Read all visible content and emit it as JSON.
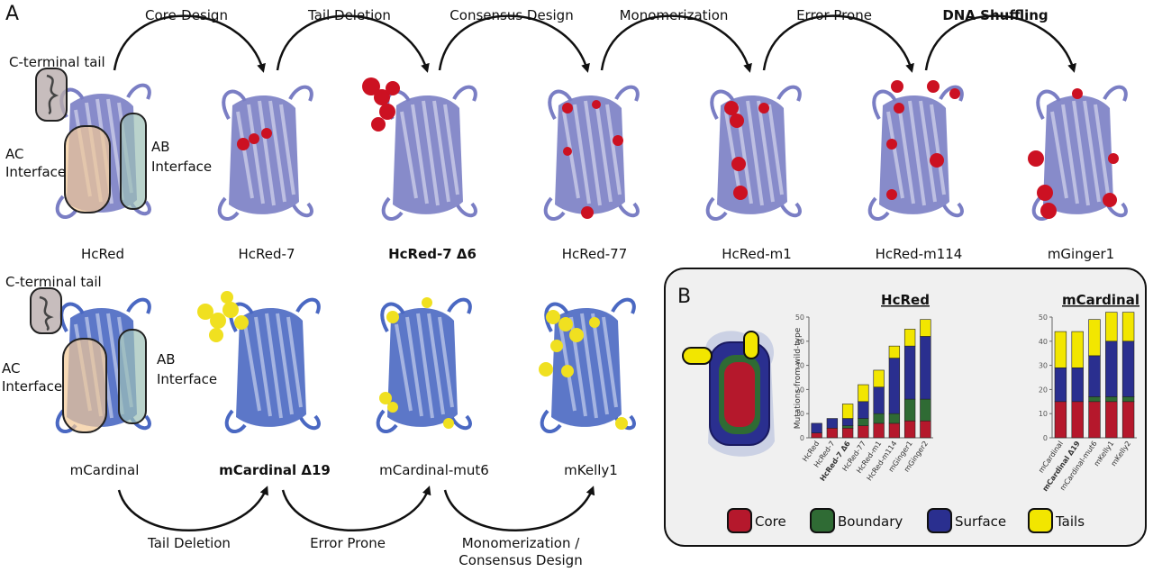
{
  "figure": {
    "panel_a": "A",
    "panel_b": "B",
    "top_steps": [
      "Core-Design",
      "Tail Deletion",
      "Consensus Design",
      "Monomerization",
      "Error Prone",
      "DNA Shuffling"
    ],
    "top_proteins": [
      "HcRed",
      "HcRed-7",
      "HcRed-7 Δ6",
      "HcRed-77",
      "HcRed-m1",
      "HcRed-m114",
      "mGinger1"
    ],
    "bottom_steps": [
      "Tail Deletion",
      "Error Prone",
      "Monomerization /",
      "Consensus Design"
    ],
    "bottom_proteins": [
      "mCardinal",
      "mCardinal Δ19",
      "mCardinal-mut6",
      "mKelly1"
    ],
    "annotations": {
      "c_tail": "C-terminal tail",
      "ac_1": "AC",
      "ac_2": "Interface",
      "ab_1": "AB",
      "ab_2": "Interface"
    },
    "colors": {
      "protein_top": "#7a7ec4",
      "protein_bottom": "#4a68c2",
      "mutation_top": "#cc1122",
      "mutation_bottom": "#f0e020",
      "core": "#b5182c",
      "boundary": "#2f6b34",
      "surface": "#2a2f8f",
      "tails": "#f2e600"
    }
  },
  "chart_data": [
    {
      "type": "bar",
      "stacked": true,
      "title": "HcRed",
      "ylabel": "Mutations from wild-type",
      "ylim": [
        0,
        50
      ],
      "yticks": [
        0,
        10,
        20,
        30,
        40,
        50
      ],
      "categories": [
        "HcRed",
        "HcRed-7",
        "HcRed-7 Δ6",
        "HcRed-77",
        "HcRed-m1",
        "HcRed-m114",
        "mGinger1",
        "mGinger2"
      ],
      "series": [
        {
          "name": "Core",
          "values": [
            2,
            4,
            4,
            5,
            6,
            6,
            7,
            7
          ]
        },
        {
          "name": "Boundary",
          "values": [
            0,
            0,
            1,
            3,
            4,
            4,
            9,
            9
          ]
        },
        {
          "name": "Surface",
          "values": [
            4,
            4,
            3,
            7,
            11,
            23,
            22,
            26
          ]
        },
        {
          "name": "Tails",
          "values": [
            0,
            0,
            6,
            7,
            7,
            5,
            7,
            7
          ]
        }
      ]
    },
    {
      "type": "bar",
      "stacked": true,
      "title": "mCardinal",
      "ylim": [
        0,
        50
      ],
      "yticks": [
        0,
        10,
        20,
        30,
        40,
        50
      ],
      "categories": [
        "mCardinal",
        "mCardinal Δ19",
        "mCardinal-mut6",
        "mKelly1",
        "mKelly2"
      ],
      "series": [
        {
          "name": "Core",
          "values": [
            15,
            15,
            15,
            15,
            15
          ]
        },
        {
          "name": "Boundary",
          "values": [
            0,
            0,
            2,
            2,
            2
          ]
        },
        {
          "name": "Surface",
          "values": [
            14,
            14,
            17,
            23,
            23
          ]
        },
        {
          "name": "Tails",
          "values": [
            15,
            15,
            15,
            12,
            12
          ]
        }
      ]
    }
  ],
  "legend": [
    "Core",
    "Boundary",
    "Surface",
    "Tails"
  ]
}
